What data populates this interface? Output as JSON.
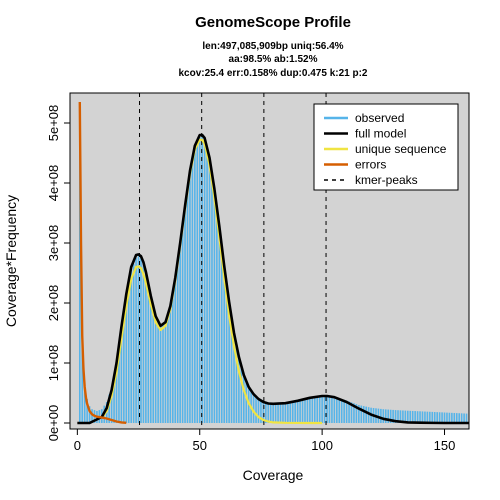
{
  "chart_data": {
    "type": "line",
    "title": "GenomeScope Profile",
    "subtitle_lines": [
      "len:497,085,909bp uniq:56.4%",
      "aa:98.5% ab:1.52%",
      "kcov:25.4 err:0.158%  dup:0.475  k:21 p:2"
    ],
    "xlabel": "Coverage",
    "ylabel": "Coverage*Frequency",
    "xlim": [
      -3,
      160
    ],
    "ylim": [
      -10000000.0,
      550000000.0
    ],
    "xticks": [
      0,
      50,
      100,
      150
    ],
    "xtick_labels": [
      "0",
      "50",
      "100",
      "150"
    ],
    "yticks": [
      0,
      100000000.0,
      200000000.0,
      300000000.0,
      400000000.0,
      500000000.0
    ],
    "ytick_labels": [
      "0e+00",
      "1e+08",
      "2e+08",
      "3e+08",
      "4e+08",
      "5e+08"
    ],
    "kmer_peaks": [
      25.4,
      50.8,
      76.2,
      101.6
    ],
    "legend_position": "top-right",
    "legend": [
      {
        "label": "observed",
        "color": "#56b4e9",
        "style": "solid"
      },
      {
        "label": "full model",
        "color": "#000000",
        "style": "solid"
      },
      {
        "label": "unique sequence",
        "color": "#f0e442",
        "style": "solid"
      },
      {
        "label": "errors",
        "color": "#d55e00",
        "style": "solid"
      },
      {
        "label": "kmer-peaks",
        "color": "#000000",
        "style": "dashed"
      }
    ],
    "background": "#d3d3d3",
    "series": [
      {
        "name": "full model",
        "color": "#000000",
        "x": [
          0,
          5,
          10,
          12,
          14,
          16,
          18,
          20,
          22,
          24,
          25,
          26,
          27,
          28,
          30,
          32,
          34,
          36,
          38,
          40,
          42,
          44,
          46,
          48,
          50,
          51,
          52,
          54,
          56,
          58,
          60,
          62,
          64,
          66,
          68,
          70,
          72,
          74,
          76,
          78,
          80,
          85,
          90,
          95,
          100,
          102,
          105,
          110,
          115,
          120,
          125,
          130,
          135,
          140,
          145,
          150,
          155,
          160
        ],
        "y": [
          0,
          0,
          10000000.0,
          25000000.0,
          55000000.0,
          100000000.0,
          160000000.0,
          215000000.0,
          260000000.0,
          280000000.0,
          281000000.0,
          278000000.0,
          268000000.0,
          252000000.0,
          212000000.0,
          178000000.0,
          162000000.0,
          168000000.0,
          195000000.0,
          242000000.0,
          300000000.0,
          362000000.0,
          420000000.0,
          462000000.0,
          480000000.0,
          480000000.0,
          475000000.0,
          442000000.0,
          390000000.0,
          328000000.0,
          262000000.0,
          202000000.0,
          150000000.0,
          110000000.0,
          80000000.0,
          60000000.0,
          48000000.0,
          40000000.0,
          35000000.0,
          32500000.0,
          32000000.0,
          33000000.0,
          37000000.0,
          42000000.0,
          45000000.0,
          45000000.0,
          43000000.0,
          35000000.0,
          24000000.0,
          14000000.0,
          7000000.0,
          3000000.0,
          1000000.0,
          500000.0,
          200000.0,
          0,
          0,
          0
        ]
      },
      {
        "name": "unique sequence",
        "color": "#f0e442",
        "x": [
          10,
          12,
          14,
          16,
          18,
          20,
          22,
          24,
          25,
          26,
          27,
          28,
          30,
          32,
          34,
          36,
          38,
          40,
          42,
          44,
          46,
          48,
          50,
          51,
          52,
          54,
          56,
          58,
          60,
          62,
          64,
          66,
          68,
          70,
          72,
          74,
          76,
          78,
          80,
          85,
          90,
          95,
          100
        ],
        "y": [
          8000000.0,
          20000000.0,
          45000000.0,
          85000000.0,
          140000000.0,
          195000000.0,
          240000000.0,
          260000000.0,
          261000000.0,
          258000000.0,
          248000000.0,
          234000000.0,
          198000000.0,
          168000000.0,
          155000000.0,
          162000000.0,
          190000000.0,
          238000000.0,
          296000000.0,
          358000000.0,
          415000000.0,
          456000000.0,
          472000000.0,
          472000000.0,
          465000000.0,
          430000000.0,
          375000000.0,
          310000000.0,
          242000000.0,
          180000000.0,
          128000000.0,
          86000000.0,
          55000000.0,
          33000000.0,
          19000000.0,
          10000000.0,
          5000000.0,
          2500000.0,
          1000000.0,
          300000.0,
          100000.0,
          0,
          0
        ]
      },
      {
        "name": "errors",
        "color": "#d55e00",
        "x": [
          1,
          1.5,
          2,
          2.5,
          3,
          3.5,
          4,
          5,
          6,
          7,
          8,
          10,
          12,
          14,
          16,
          18,
          20
        ],
        "y": [
          535000000.0,
          300000000.0,
          145000000.0,
          90000000.0,
          60000000.0,
          43000000.0,
          32000000.0,
          20000000.0,
          14500000.0,
          12000000.0,
          10500000.0,
          9000000.0,
          7500000.0,
          5000000.0,
          2500000.0,
          1000000.0,
          300000.0
        ]
      },
      {
        "name": "observed",
        "color": "#56b4e9",
        "x": [
          1,
          2,
          3,
          4,
          5,
          6,
          8,
          10,
          12,
          14,
          16,
          18,
          20,
          22,
          24,
          25,
          26,
          27,
          28,
          30,
          32,
          34,
          36,
          38,
          40,
          42,
          44,
          46,
          48,
          50,
          51,
          52,
          54,
          56,
          58,
          60,
          62,
          64,
          66,
          68,
          70,
          72,
          74,
          76,
          78,
          80,
          85,
          90,
          95,
          100,
          102,
          105,
          110,
          115,
          120,
          125,
          130,
          135,
          140,
          145,
          150,
          155,
          160
        ],
        "y": [
          535000000.0,
          150000000.0,
          65000000.0,
          40000000.0,
          28000000.0,
          23000000.0,
          20000000.0,
          23000000.0,
          35000000.0,
          60000000.0,
          102000000.0,
          160000000.0,
          212000000.0,
          255000000.0,
          275000000.0,
          278000000.0,
          275000000.0,
          266000000.0,
          250000000.0,
          210000000.0,
          176000000.0,
          160000000.0,
          166000000.0,
          193000000.0,
          240000000.0,
          298000000.0,
          360000000.0,
          417000000.0,
          459000000.0,
          477000000.0,
          478000000.0,
          472000000.0,
          438000000.0,
          387000000.0,
          326000000.0,
          260000000.0,
          201000000.0,
          150000000.0,
          111000000.0,
          82000000.0,
          62000000.0,
          50000000.0,
          42000000.0,
          37000000.0,
          34500000.0,
          34000000.0,
          35000000.0,
          38500000.0,
          43000000.0,
          45500000.0,
          45000000.0,
          43500000.0,
          37500000.0,
          30000000.0,
          25500000.0,
          23000000.0,
          21500000.0,
          20500000.0,
          19500000.0,
          18500000.0,
          17500000.0,
          16500000.0,
          15500000.0
        ]
      }
    ]
  }
}
